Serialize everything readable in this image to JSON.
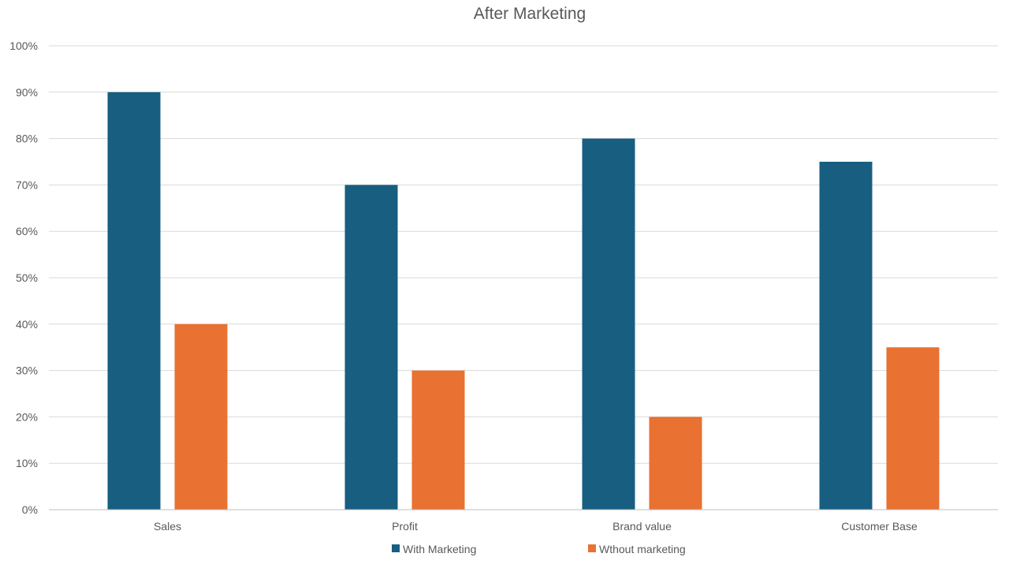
{
  "chart_data": {
    "type": "bar",
    "title": "After Marketing",
    "categories": [
      "Sales",
      "Profit",
      "Brand value",
      "Customer Base"
    ],
    "series": [
      {
        "name": "With Marketing",
        "values": [
          90,
          70,
          80,
          75
        ],
        "color": "#175e81"
      },
      {
        "name": "Wthout marketing",
        "values": [
          40,
          30,
          20,
          35
        ],
        "color": "#e97132"
      }
    ],
    "ylim": [
      0,
      100
    ],
    "yticks": [
      0,
      10,
      20,
      30,
      40,
      50,
      60,
      70,
      80,
      90,
      100
    ],
    "ytick_labels": [
      "0%",
      "10%",
      "20%",
      "30%",
      "40%",
      "50%",
      "60%",
      "70%",
      "80%",
      "90%",
      "100%"
    ],
    "xlabel": "",
    "ylabel": "",
    "grid": true,
    "legend_position": "bottom"
  }
}
